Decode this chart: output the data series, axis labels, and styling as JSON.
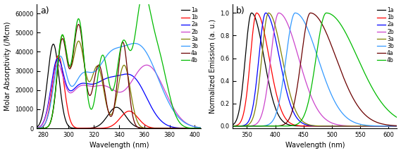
{
  "colors": {
    "1a": "#000000",
    "1b": "#ff0000",
    "2a": "#0000ff",
    "2b": "#cc44cc",
    "3a": "#808000",
    "3b": "#3399ff",
    "4a": "#6B0000",
    "4b": "#00bb00"
  },
  "abs_xlim": [
    275,
    405
  ],
  "abs_ylim": [
    0,
    65000
  ],
  "abs_yticks": [
    0,
    10000,
    20000,
    30000,
    40000,
    50000,
    60000
  ],
  "abs_xticks": [
    280,
    300,
    320,
    340,
    360,
    380,
    400
  ],
  "em_xlim": [
    325,
    615
  ],
  "em_ylim": [
    -0.02,
    1.08
  ],
  "em_xticks": [
    350,
    400,
    450,
    500,
    550,
    600
  ],
  "em_yticks": [
    0.0,
    0.2,
    0.4,
    0.6,
    0.8,
    1.0
  ],
  "xlabel": "Wavelength (nm)",
  "abs_ylabel": "Molar Absorptivity (/Mcm)",
  "em_ylabel": "Normalized Emission (a. u.)",
  "label_a": "a)",
  "label_b": "b)"
}
